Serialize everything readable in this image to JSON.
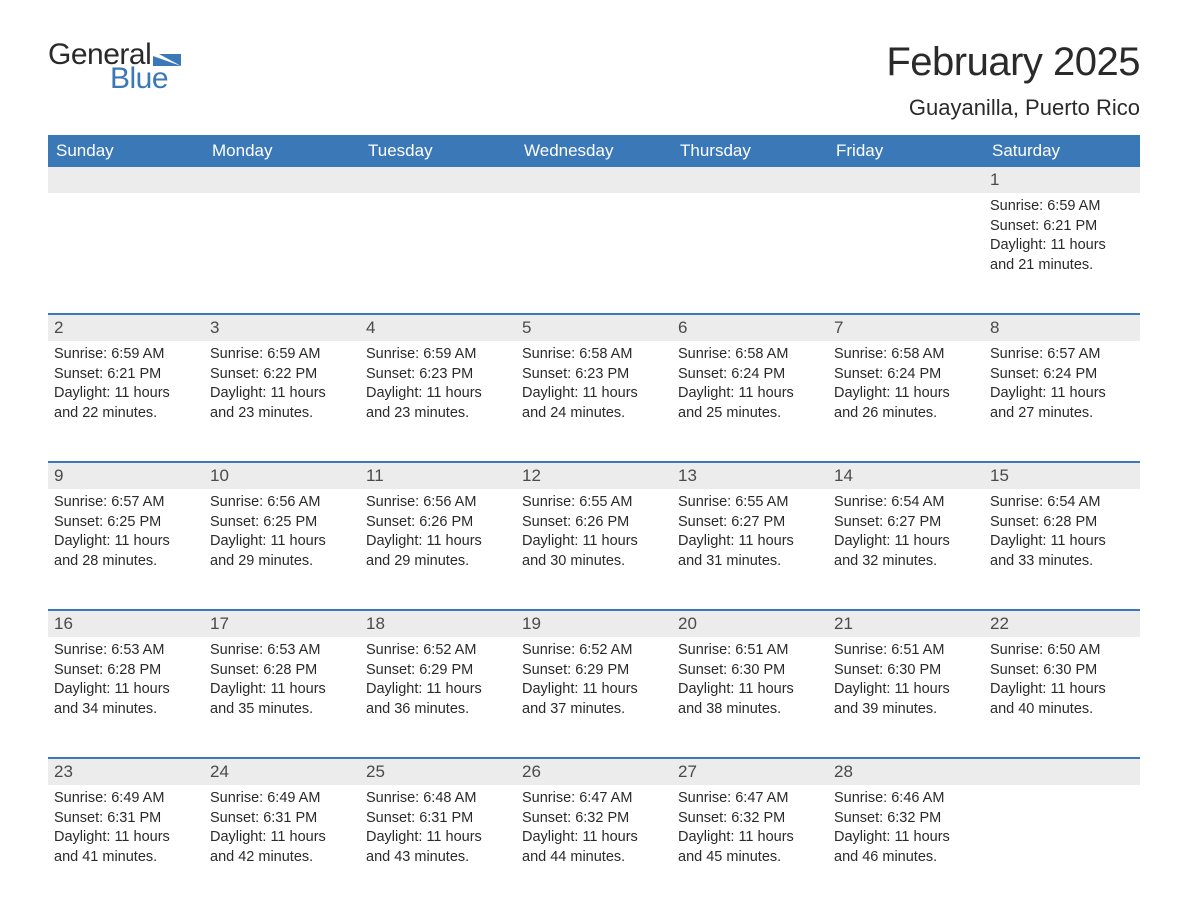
{
  "brand": {
    "general": "General",
    "blue": "Blue",
    "mark_color": "#3b78b8"
  },
  "title": "February 2025",
  "location": "Guayanilla, Puerto Rico",
  "colors": {
    "header_bg": "#3b78b8",
    "header_text": "#ffffff",
    "band_bg": "#ececec",
    "rule": "#3b78b8",
    "text": "#2a2a2a",
    "muted": "#4a4a4a",
    "page_bg": "#ffffff"
  },
  "fonts": {
    "family": "Arial",
    "title_size_pt": 30,
    "location_size_pt": 16,
    "dow_size_pt": 13,
    "daynum_size_pt": 13,
    "body_size_pt": 11
  },
  "days_of_week": [
    "Sunday",
    "Monday",
    "Tuesday",
    "Wednesday",
    "Thursday",
    "Friday",
    "Saturday"
  ],
  "weeks": [
    [
      {
        "day": null
      },
      {
        "day": null
      },
      {
        "day": null
      },
      {
        "day": null
      },
      {
        "day": null
      },
      {
        "day": null
      },
      {
        "day": 1,
        "sunrise": "Sunrise: 6:59 AM",
        "sunset": "Sunset: 6:21 PM",
        "daylight": "Daylight: 11 hours and 21 minutes."
      }
    ],
    [
      {
        "day": 2,
        "sunrise": "Sunrise: 6:59 AM",
        "sunset": "Sunset: 6:21 PM",
        "daylight": "Daylight: 11 hours and 22 minutes."
      },
      {
        "day": 3,
        "sunrise": "Sunrise: 6:59 AM",
        "sunset": "Sunset: 6:22 PM",
        "daylight": "Daylight: 11 hours and 23 minutes."
      },
      {
        "day": 4,
        "sunrise": "Sunrise: 6:59 AM",
        "sunset": "Sunset: 6:23 PM",
        "daylight": "Daylight: 11 hours and 23 minutes."
      },
      {
        "day": 5,
        "sunrise": "Sunrise: 6:58 AM",
        "sunset": "Sunset: 6:23 PM",
        "daylight": "Daylight: 11 hours and 24 minutes."
      },
      {
        "day": 6,
        "sunrise": "Sunrise: 6:58 AM",
        "sunset": "Sunset: 6:24 PM",
        "daylight": "Daylight: 11 hours and 25 minutes."
      },
      {
        "day": 7,
        "sunrise": "Sunrise: 6:58 AM",
        "sunset": "Sunset: 6:24 PM",
        "daylight": "Daylight: 11 hours and 26 minutes."
      },
      {
        "day": 8,
        "sunrise": "Sunrise: 6:57 AM",
        "sunset": "Sunset: 6:24 PM",
        "daylight": "Daylight: 11 hours and 27 minutes."
      }
    ],
    [
      {
        "day": 9,
        "sunrise": "Sunrise: 6:57 AM",
        "sunset": "Sunset: 6:25 PM",
        "daylight": "Daylight: 11 hours and 28 minutes."
      },
      {
        "day": 10,
        "sunrise": "Sunrise: 6:56 AM",
        "sunset": "Sunset: 6:25 PM",
        "daylight": "Daylight: 11 hours and 29 minutes."
      },
      {
        "day": 11,
        "sunrise": "Sunrise: 6:56 AM",
        "sunset": "Sunset: 6:26 PM",
        "daylight": "Daylight: 11 hours and 29 minutes."
      },
      {
        "day": 12,
        "sunrise": "Sunrise: 6:55 AM",
        "sunset": "Sunset: 6:26 PM",
        "daylight": "Daylight: 11 hours and 30 minutes."
      },
      {
        "day": 13,
        "sunrise": "Sunrise: 6:55 AM",
        "sunset": "Sunset: 6:27 PM",
        "daylight": "Daylight: 11 hours and 31 minutes."
      },
      {
        "day": 14,
        "sunrise": "Sunrise: 6:54 AM",
        "sunset": "Sunset: 6:27 PM",
        "daylight": "Daylight: 11 hours and 32 minutes."
      },
      {
        "day": 15,
        "sunrise": "Sunrise: 6:54 AM",
        "sunset": "Sunset: 6:28 PM",
        "daylight": "Daylight: 11 hours and 33 minutes."
      }
    ],
    [
      {
        "day": 16,
        "sunrise": "Sunrise: 6:53 AM",
        "sunset": "Sunset: 6:28 PM",
        "daylight": "Daylight: 11 hours and 34 minutes."
      },
      {
        "day": 17,
        "sunrise": "Sunrise: 6:53 AM",
        "sunset": "Sunset: 6:28 PM",
        "daylight": "Daylight: 11 hours and 35 minutes."
      },
      {
        "day": 18,
        "sunrise": "Sunrise: 6:52 AM",
        "sunset": "Sunset: 6:29 PM",
        "daylight": "Daylight: 11 hours and 36 minutes."
      },
      {
        "day": 19,
        "sunrise": "Sunrise: 6:52 AM",
        "sunset": "Sunset: 6:29 PM",
        "daylight": "Daylight: 11 hours and 37 minutes."
      },
      {
        "day": 20,
        "sunrise": "Sunrise: 6:51 AM",
        "sunset": "Sunset: 6:30 PM",
        "daylight": "Daylight: 11 hours and 38 minutes."
      },
      {
        "day": 21,
        "sunrise": "Sunrise: 6:51 AM",
        "sunset": "Sunset: 6:30 PM",
        "daylight": "Daylight: 11 hours and 39 minutes."
      },
      {
        "day": 22,
        "sunrise": "Sunrise: 6:50 AM",
        "sunset": "Sunset: 6:30 PM",
        "daylight": "Daylight: 11 hours and 40 minutes."
      }
    ],
    [
      {
        "day": 23,
        "sunrise": "Sunrise: 6:49 AM",
        "sunset": "Sunset: 6:31 PM",
        "daylight": "Daylight: 11 hours and 41 minutes."
      },
      {
        "day": 24,
        "sunrise": "Sunrise: 6:49 AM",
        "sunset": "Sunset: 6:31 PM",
        "daylight": "Daylight: 11 hours and 42 minutes."
      },
      {
        "day": 25,
        "sunrise": "Sunrise: 6:48 AM",
        "sunset": "Sunset: 6:31 PM",
        "daylight": "Daylight: 11 hours and 43 minutes."
      },
      {
        "day": 26,
        "sunrise": "Sunrise: 6:47 AM",
        "sunset": "Sunset: 6:32 PM",
        "daylight": "Daylight: 11 hours and 44 minutes."
      },
      {
        "day": 27,
        "sunrise": "Sunrise: 6:47 AM",
        "sunset": "Sunset: 6:32 PM",
        "daylight": "Daylight: 11 hours and 45 minutes."
      },
      {
        "day": 28,
        "sunrise": "Sunrise: 6:46 AM",
        "sunset": "Sunset: 6:32 PM",
        "daylight": "Daylight: 11 hours and 46 minutes."
      },
      {
        "day": null
      }
    ]
  ]
}
